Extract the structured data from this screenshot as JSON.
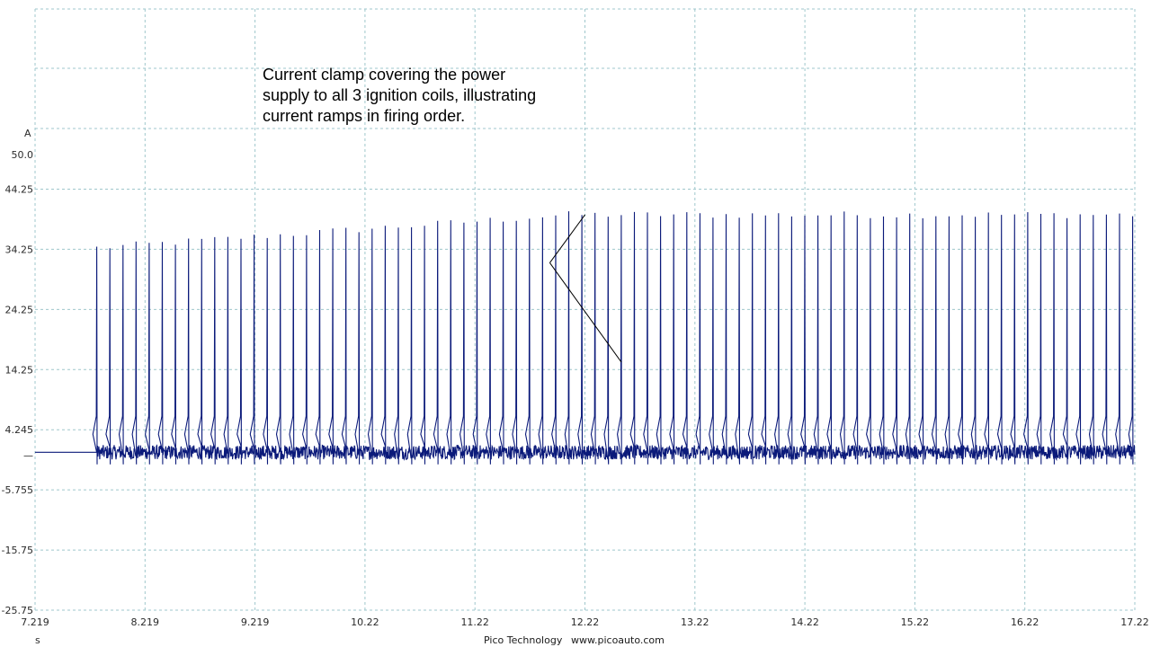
{
  "chart_data": {
    "type": "line",
    "y_unit": "A",
    "x_unit": "s",
    "xlim": [
      7.219,
      17.22
    ],
    "ylim": [
      -25.75,
      50.0
    ],
    "x_ticks": [
      "7.219",
      "8.219",
      "9.219",
      "10.22",
      "11.22",
      "12.22",
      "13.22",
      "14.22",
      "15.22",
      "16.22",
      "17.22"
    ],
    "y_ticks": [
      {
        "value": 50.0,
        "label": "50.0"
      },
      {
        "value": 44.25,
        "label": "44.25"
      },
      {
        "value": 34.25,
        "label": "34.25"
      },
      {
        "value": 24.25,
        "label": "24.25"
      },
      {
        "value": 14.25,
        "label": "14.25"
      },
      {
        "value": 4.245,
        "label": "4.245"
      },
      {
        "value": 0,
        "label": "—"
      },
      {
        "value": -5.755,
        "label": "-5.755"
      },
      {
        "value": -15.75,
        "label": "-15.75"
      },
      {
        "value": -25.75,
        "label": "-25.75"
      }
    ],
    "grid": true,
    "series": [
      {
        "color": "#0b1a7a",
        "baseline": 0.5,
        "pulse_start": 7.78,
        "pulse_end": 17.2,
        "pulse_count": 80,
        "peak_start": 34.5,
        "peak_end": 40.0,
        "activity_start": 7.78
      }
    ],
    "annotations": [
      {
        "text_lines": [
          "Current clamp covering the power",
          "supply to all 3 ignition coils, illustrating",
          "current ramps in firing order."
        ],
        "arrow_tail": {
          "x": 11.9,
          "y": 32.0
        },
        "arrow_targets": [
          {
            "x": 12.22,
            "y": 40.0
          },
          {
            "x": 12.55,
            "y": 15.5
          }
        ]
      }
    ]
  },
  "footer": {
    "brand": "Pico Technology",
    "website": "www.picoauto.com"
  }
}
